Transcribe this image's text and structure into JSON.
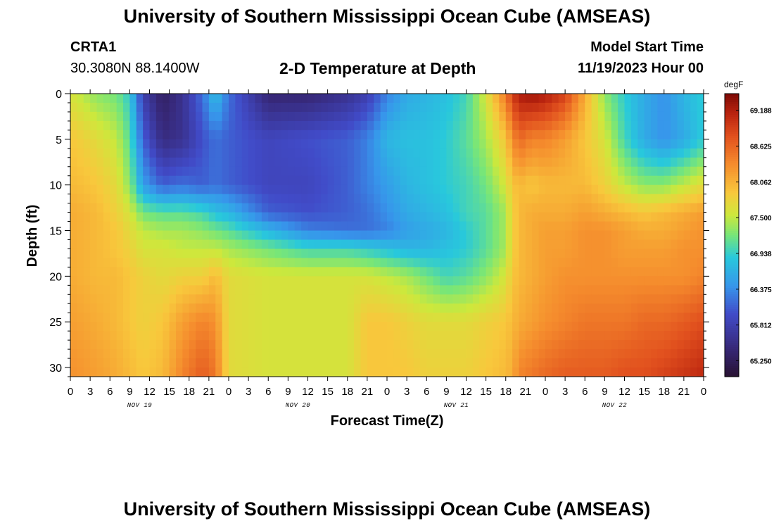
{
  "header": {
    "title": "University of Southern Mississippi Ocean Cube (AMSEAS)",
    "station": "CRTA1",
    "coords": "30.3080N  88.1400W",
    "plot_title": "2-D Temperature at Depth",
    "model_start_label": "Model Start Time",
    "model_start_value": "11/19/2023 Hour 00",
    "footer_title": "University of Southern Mississippi Ocean Cube (AMSEAS)"
  },
  "chart_data": {
    "type": "heatmap",
    "title": "2-D Temperature at Depth",
    "xlabel": "Forecast Time(Z)",
    "ylabel": "Depth (ft)",
    "x_tick_labels": [
      "0",
      "3",
      "6",
      "9",
      "12",
      "15",
      "18",
      "21",
      "0",
      "3",
      "6",
      "9",
      "12",
      "15",
      "18",
      "21",
      "0",
      "3",
      "6",
      "9",
      "12",
      "15",
      "18",
      "21",
      "0",
      "3",
      "6",
      "9",
      "12",
      "15",
      "18",
      "21",
      "0"
    ],
    "day_labels": [
      "NOV 19",
      "NOV 20",
      "NOV 21",
      "NOV 22"
    ],
    "xlim_hours": [
      0,
      96
    ],
    "ylim": [
      0,
      31
    ],
    "y_ticks": [
      0,
      5,
      10,
      15,
      20,
      25,
      30
    ],
    "y_inverted": true,
    "colorbar": {
      "unit": "degF",
      "min": 65.0,
      "max": 69.45,
      "tick_values": [
        69.188,
        68.625,
        68.062,
        67.5,
        66.938,
        66.375,
        65.812,
        65.25
      ],
      "tick_labels": [
        "69.188",
        "68.625",
        "68.062",
        "67.500",
        "66.938",
        "66.375",
        "65.812",
        "65.250"
      ]
    },
    "depth_levels_ft": [
      0,
      5,
      10,
      13,
      15,
      17,
      20,
      25,
      31
    ],
    "time_hours": [
      0,
      4,
      7,
      9,
      11,
      14,
      17,
      20,
      22,
      24,
      30,
      36,
      42,
      45,
      48,
      51,
      54,
      57,
      60,
      63,
      66,
      67,
      68,
      70,
      72,
      75,
      78,
      81,
      84,
      87,
      90,
      93,
      96
    ],
    "temperature_degF": [
      [
        67.6,
        67.3,
        67.2,
        66.9,
        65.8,
        65.3,
        65.6,
        66.2,
        66.8,
        66.2,
        65.4,
        65.4,
        65.6,
        65.8,
        66.3,
        66.6,
        66.7,
        66.8,
        67.0,
        67.6,
        68.5,
        68.9,
        69.2,
        69.3,
        69.2,
        68.9,
        68.1,
        67.3,
        66.9,
        66.6,
        66.4,
        66.7,
        66.9
      ],
      [
        67.9,
        67.7,
        67.5,
        67.1,
        66.1,
        65.5,
        65.6,
        66.0,
        66.2,
        66.1,
        65.9,
        66.0,
        66.1,
        66.3,
        66.7,
        66.8,
        66.8,
        66.9,
        67.1,
        67.4,
        67.9,
        68.3,
        68.6,
        68.4,
        68.4,
        68.2,
        67.9,
        67.6,
        67.0,
        66.6,
        66.4,
        66.6,
        66.9
      ],
      [
        68.0,
        67.9,
        67.7,
        67.3,
        66.5,
        66.1,
        66.2,
        66.1,
        66.2,
        66.1,
        65.9,
        65.9,
        66.1,
        66.3,
        66.5,
        66.7,
        66.8,
        66.9,
        67.0,
        67.2,
        67.6,
        67.9,
        68.0,
        67.9,
        68.0,
        68.0,
        68.0,
        67.8,
        67.5,
        67.3,
        67.3,
        67.5,
        67.7
      ],
      [
        68.1,
        68.0,
        67.8,
        67.6,
        67.2,
        67.1,
        67.1,
        67.0,
        66.8,
        66.7,
        66.1,
        66.0,
        66.1,
        66.2,
        66.4,
        66.6,
        66.7,
        66.8,
        67.0,
        67.1,
        67.4,
        67.8,
        68.0,
        68.1,
        68.1,
        68.1,
        68.2,
        68.1,
        68.0,
        67.9,
        68.0,
        68.1,
        68.2
      ],
      [
        68.1,
        68.0,
        67.9,
        67.7,
        67.5,
        67.4,
        67.4,
        67.3,
        67.2,
        67.1,
        66.7,
        66.3,
        66.2,
        66.2,
        66.3,
        66.5,
        66.6,
        66.7,
        66.9,
        67.1,
        67.4,
        67.8,
        68.0,
        68.1,
        68.2,
        68.2,
        68.3,
        68.3,
        68.2,
        68.1,
        68.1,
        68.2,
        68.3
      ],
      [
        68.1,
        68.0,
        67.9,
        67.8,
        67.6,
        67.6,
        67.5,
        67.5,
        67.5,
        67.4,
        67.2,
        67.0,
        67.0,
        66.9,
        66.8,
        66.7,
        66.7,
        66.8,
        66.9,
        67.1,
        67.4,
        67.8,
        68.0,
        68.1,
        68.2,
        68.2,
        68.3,
        68.3,
        68.2,
        68.2,
        68.2,
        68.3,
        68.3
      ],
      [
        68.1,
        68.0,
        68.0,
        67.9,
        67.8,
        67.7,
        67.8,
        67.8,
        68.0,
        67.7,
        67.6,
        67.6,
        67.6,
        67.6,
        67.5,
        67.4,
        67.2,
        67.0,
        67.1,
        67.3,
        67.6,
        67.9,
        68.0,
        68.1,
        68.2,
        68.3,
        68.3,
        68.3,
        68.3,
        68.3,
        68.3,
        68.3,
        68.4
      ],
      [
        68.2,
        68.1,
        68.0,
        67.9,
        67.8,
        67.9,
        68.2,
        68.4,
        68.3,
        67.7,
        67.6,
        67.6,
        67.6,
        67.9,
        67.9,
        67.8,
        67.7,
        67.7,
        67.7,
        67.8,
        67.9,
        68.0,
        68.1,
        68.2,
        68.3,
        68.4,
        68.5,
        68.5,
        68.5,
        68.6,
        68.6,
        68.7,
        68.8
      ],
      [
        68.3,
        68.2,
        68.1,
        68.0,
        67.9,
        68.0,
        68.4,
        68.7,
        68.5,
        67.7,
        67.6,
        67.6,
        67.6,
        67.9,
        67.9,
        67.9,
        67.8,
        67.8,
        67.8,
        67.9,
        68.0,
        68.1,
        68.4,
        68.5,
        68.6,
        68.7,
        68.7,
        68.7,
        68.8,
        68.8,
        68.9,
        69.0,
        69.1
      ]
    ]
  }
}
